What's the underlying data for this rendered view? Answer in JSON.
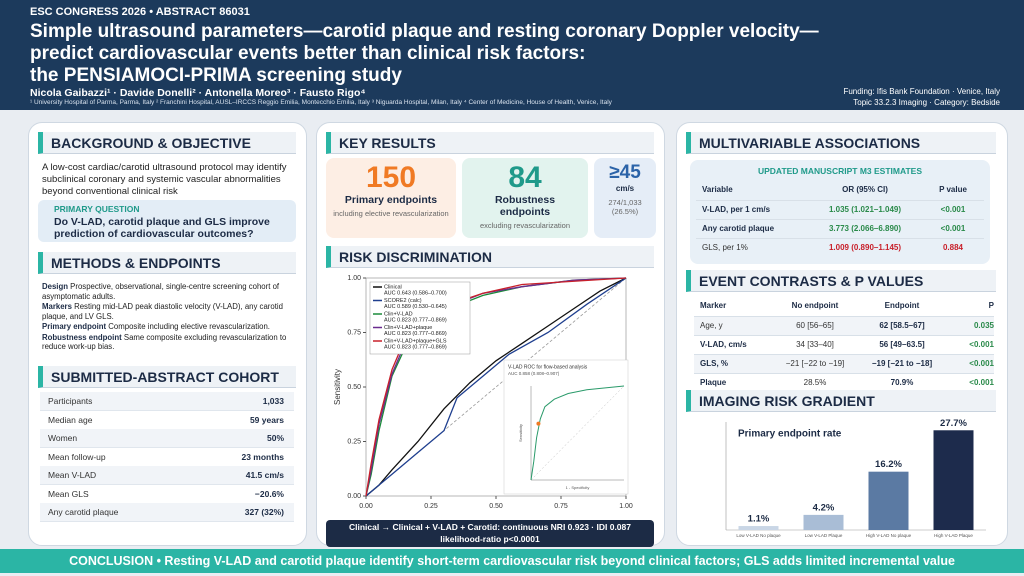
{
  "header": {
    "congress": "ESC CONGRESS 2026  •  ABSTRACT 86031",
    "title_lines": [
      "Simple ultrasound parameters—carotid plaque and resting coronary Doppler velocity—",
      "predict cardiovascular events better than clinical risk factors:",
      "the PENSIAMOCI-PRIMA screening study"
    ],
    "authors": "Nicola Gaibazzi¹ · Davide Donelli² · Antonella Moreo³ · Fausto Rigo⁴",
    "affiliations": "¹ University Hospital of Parma, Parma, Italy   ² Franchini Hospital, AUSL–IRCCS Reggio Emilia, Montecchio Emilia, Italy   ³ Niguarda Hospital, Milan, Italy   ⁴ Center of Medicine, House of Health, Venice, Italy",
    "funding": "Funding: Ifis Bank Foundation · Venice, Italy",
    "topic": "Topic 33.2.3 Imaging · Category: Bedside"
  },
  "background": {
    "title": "BACKGROUND & OBJECTIVE",
    "text": "A low-cost cardiac/carotid ultrasound protocol may identify subclinical coronary and systemic vascular abnormalities beyond conventional clinical risk",
    "question_label": "PRIMARY QUESTION",
    "question": "Do V-LAD, carotid plaque and GLS improve prediction of cardiovascular outcomes?"
  },
  "methods": {
    "title": "METHODS & ENDPOINTS",
    "items": [
      {
        "label": "Design",
        "text": "Prospective, observational, single-centre screening cohort of asymptomatic adults."
      },
      {
        "label": "Markers",
        "text": "Resting mid-LAD peak diastolic velocity (V-LAD), any carotid plaque, and LV GLS."
      },
      {
        "label": "Primary endpoint",
        "text": "Composite including elective revascularization."
      },
      {
        "label": "Robustness endpoint",
        "text": "Same composite excluding revascularization to reduce work-up bias."
      }
    ]
  },
  "cohort": {
    "title": "SUBMITTED-ABSTRACT COHORT",
    "rows": [
      [
        "Participants",
        "1,033"
      ],
      [
        "Median age",
        "59 years"
      ],
      [
        "Women",
        "50%"
      ],
      [
        "Mean follow-up",
        "23 months"
      ],
      [
        "Mean V-LAD",
        "41.5 cm/s"
      ],
      [
        "Mean GLS",
        "−20.6%"
      ],
      [
        "Any carotid plaque",
        "327 (32%)"
      ]
    ]
  },
  "key_results": {
    "title": "KEY RESULTS",
    "cards": [
      {
        "number": "150",
        "label": "Primary endpoints",
        "note": "including elective revascularization"
      },
      {
        "number": "84",
        "label": "Robustness endpoints",
        "note": "excluding revascularization"
      },
      {
        "number": "≥45",
        "label": "cm/s",
        "note": "274/1,033 (26.5%)"
      }
    ]
  },
  "caption": [
    "Clinical → Clinical + V-LAD + Carotid: continuous NRI 0.923 · IDI 0.087",
    "likelihood-ratio p<0.0001"
  ],
  "multivariable": {
    "title": "MULTIVARIABLE ASSOCIATIONS",
    "subtitle": "UPDATED MANUSCRIPT M3 ESTIMATES",
    "headers": [
      "Variable",
      "OR (95% CI)",
      "P value"
    ],
    "rows": [
      [
        "V-LAD, per 1 cm/s",
        "1.035 (1.021–1.049)",
        "<0.001"
      ],
      [
        "Any carotid plaque",
        "3.773 (2.066–6.890)",
        "<0.001"
      ],
      [
        "GLS, per 1%",
        "1.009 (0.890–1.145)",
        "0.884"
      ]
    ]
  },
  "contrasts": {
    "title": "EVENT CONTRASTS & P VALUES",
    "headers": [
      "Marker",
      "No endpoint",
      "Endpoint",
      "P"
    ],
    "rows": [
      [
        "Age, y",
        "60 [56–65]",
        "62 [58.5–67]",
        "0.035"
      ],
      [
        "V-LAD, cm/s",
        "34 [33–40]",
        "56 [49–63.5]",
        "<0.001"
      ],
      [
        "GLS, %",
        "−21 [−22 to −19]",
        "−19 [−21 to −18]",
        "<0.001"
      ],
      [
        "Plaque",
        "28.5%",
        "70.9%",
        "<0.001"
      ]
    ]
  },
  "conclusion": "CONCLUSION  •  Resting V-LAD and carotid plaque identify short-term cardiovascular risk beyond clinical factors; GLS adds limited incremental value",
  "chart_data": [
    {
      "type": "line",
      "title": "RISK DISCRIMINATION",
      "y_label": "Sensitivity",
      "xlim": [
        0,
        1
      ],
      "ylim": [
        0,
        1
      ],
      "xticks": [
        {
          "value": 0,
          "label": "0.00"
        },
        {
          "value": 0.25,
          "label": "0.25"
        },
        {
          "value": 0.5,
          "label": "0.50"
        },
        {
          "value": 0.75,
          "label": "0.75"
        },
        {
          "value": 1,
          "label": "1.00"
        }
      ],
      "yticks": [
        {
          "value": 0,
          "label": "0.00"
        },
        {
          "value": 0.25,
          "label": "0.25"
        },
        {
          "value": 0.5,
          "label": "0.50"
        },
        {
          "value": 0.75,
          "label": "0.75"
        },
        {
          "value": 1,
          "label": "1.00"
        }
      ],
      "series": [
        {
          "name": "Clinical",
          "auc": "AUC 0.643 (0.586–0.700)",
          "color": "#111111",
          "x": [
            0,
            0.05,
            0.1,
            0.2,
            0.3,
            0.4,
            0.5,
            0.6,
            0.7,
            0.8,
            0.9,
            1
          ],
          "values": [
            0,
            0.05,
            0.12,
            0.25,
            0.4,
            0.52,
            0.62,
            0.7,
            0.78,
            0.86,
            0.94,
            1
          ]
        },
        {
          "name": "SCORE2 (calc)",
          "auc": "AUC 0.589 (0.530–0.645)",
          "color": "#1f3f8f",
          "x": [
            0,
            0.1,
            0.2,
            0.3,
            0.35,
            0.45,
            0.55,
            0.7,
            0.85,
            1
          ],
          "values": [
            0,
            0.1,
            0.2,
            0.3,
            0.45,
            0.55,
            0.65,
            0.75,
            0.88,
            1
          ]
        },
        {
          "name": "Clin+V-LAD",
          "auc": "AUC 0.823 (0.777–0.869)",
          "color": "#1a8a3a",
          "x": [
            0,
            0.02,
            0.05,
            0.1,
            0.15,
            0.22,
            0.3,
            0.45,
            0.6,
            0.8,
            1
          ],
          "values": [
            0,
            0.1,
            0.3,
            0.55,
            0.68,
            0.78,
            0.85,
            0.92,
            0.96,
            0.99,
            1
          ]
        },
        {
          "name": "Clin+V-LAD+plaque",
          "auc": "AUC 0.823 (0.777–0.869)",
          "color": "#6a2c8f",
          "x": [
            0,
            0.02,
            0.05,
            0.1,
            0.15,
            0.2,
            0.3,
            0.45,
            0.6,
            0.8,
            1
          ],
          "values": [
            0,
            0.12,
            0.33,
            0.56,
            0.7,
            0.79,
            0.86,
            0.93,
            0.96,
            0.99,
            1
          ]
        },
        {
          "name": "Clin+V-LAD+plaque+GLS",
          "auc": "AUC 0.823 (0.777–0.869)",
          "color": "#c8202a",
          "x": [
            0,
            0.02,
            0.05,
            0.1,
            0.15,
            0.2,
            0.3,
            0.45,
            0.6,
            1
          ],
          "values": [
            0,
            0.15,
            0.35,
            0.58,
            0.72,
            0.8,
            0.87,
            0.93,
            0.97,
            1
          ]
        }
      ],
      "inset": {
        "title": "V-LAD ROC for flow-based analysis",
        "subtitle": "AUC 0.858 (0.808–0.907)",
        "y_label": "Sensitivity",
        "x_label": "1 - Specificity",
        "color": "#2a9a6a",
        "x": [
          0,
          0.03,
          0.06,
          0.1,
          0.15,
          0.25,
          0.4,
          0.6,
          0.8,
          1
        ],
        "values": [
          0,
          0.2,
          0.45,
          0.65,
          0.78,
          0.86,
          0.92,
          0.96,
          0.98,
          1
        ],
        "cutoff": {
          "x": 0.08,
          "y": 0.6,
          "color": "#f07a24"
        }
      }
    },
    {
      "type": "bar",
      "title": "IMAGING RISK GRADIENT",
      "annotation": "Primary endpoint rate",
      "categories": [
        "Low V-LAD No plaque",
        "Low V-LAD Plaque",
        "High V-LAD No plaque",
        "High V-LAD Plaque"
      ],
      "values": [
        1.1,
        4.2,
        16.2,
        27.7
      ],
      "value_labels": [
        "1.1%",
        "4.2%",
        "16.2%",
        "27.7%"
      ],
      "colors": [
        "#c9d6e6",
        "#a9bdd6",
        "#5b7aa3",
        "#1d2b4c"
      ],
      "ylim": [
        0,
        30
      ]
    }
  ]
}
